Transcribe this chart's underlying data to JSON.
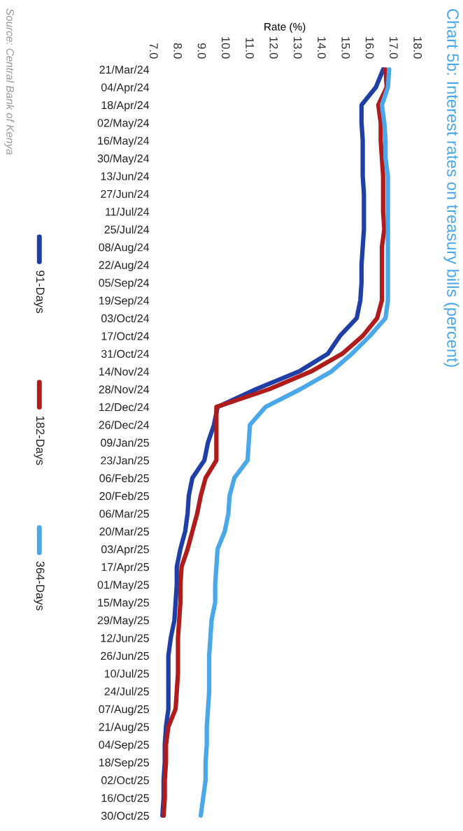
{
  "chart_data": {
    "type": "line",
    "orientation": "horizontal",
    "title": "Chart 5b: Interest rates on treasury bills (percent)",
    "xlabel": "Rate (%)",
    "annotations": [
      "Source: Central Bank of Kenya"
    ],
    "categories": [
      "21/Mar/24",
      "04/Apr/24",
      "18/Apr/24",
      "02/May/24",
      "16/May/24",
      "30/May/24",
      "13/Jun/24",
      "27/Jun/24",
      "11/Jul/24",
      "25/Jul/24",
      "08/Aug/24",
      "22/Aug/24",
      "05/Sep/24",
      "19/Sep/24",
      "03/Oct/24",
      "17/Oct/24",
      "31/Oct/24",
      "14/Nov/24",
      "28/Nov/24",
      "12/Dec/24",
      "26/Dec/24",
      "09/Jan/25",
      "23/Jan/25",
      "06/Feb/25",
      "20/Feb/25",
      "06/Mar/25",
      "20/Mar/25",
      "03/Apr/25",
      "17/Apr/25",
      "01/May/25",
      "15/May/25",
      "29/May/25",
      "12/Jun/25",
      "26/Jun/25",
      "10/Jul/25",
      "24/Jul/25",
      "07/Aug/25",
      "21/Aug/25",
      "04/Sep/25",
      "18/Sep/25",
      "02/Oct/25",
      "16/Oct/25",
      "30/Oct/25"
    ],
    "series": [
      {
        "name": "91-Days",
        "color": "#1f3fa6",
        "values": [
          16.6,
          16.3,
          15.7,
          15.7,
          15.75,
          15.75,
          15.75,
          15.8,
          15.8,
          15.8,
          15.75,
          15.7,
          15.7,
          15.65,
          15.5,
          14.8,
          14.3,
          13.1,
          11.3,
          9.7,
          9.55,
          9.3,
          9.15,
          8.65,
          8.5,
          8.45,
          8.35,
          8.15,
          8.0,
          8.0,
          7.95,
          7.9,
          7.75,
          7.65,
          7.65,
          7.65,
          7.65,
          7.55,
          7.5,
          7.5,
          7.45,
          7.45,
          7.4
        ]
      },
      {
        "name": "182-Days",
        "color": "#b01c1c",
        "values": [
          16.7,
          16.75,
          16.4,
          16.5,
          16.5,
          16.55,
          16.6,
          16.6,
          16.6,
          16.65,
          16.55,
          16.55,
          16.55,
          16.55,
          16.35,
          15.75,
          14.9,
          13.6,
          11.85,
          9.65,
          9.65,
          9.65,
          9.65,
          9.2,
          9.0,
          8.85,
          8.65,
          8.45,
          8.2,
          8.15,
          8.15,
          8.1,
          8.05,
          8.05,
          8.05,
          8.0,
          7.95,
          7.65,
          7.55,
          7.55,
          7.5,
          7.5,
          7.45
        ]
      },
      {
        "name": "364-Days",
        "color": "#4aa8e8",
        "values": [
          16.85,
          16.8,
          16.55,
          16.65,
          16.7,
          16.7,
          16.8,
          16.8,
          16.8,
          16.8,
          16.8,
          16.8,
          16.8,
          16.8,
          16.7,
          16.05,
          15.3,
          14.45,
          13.15,
          11.7,
          11.05,
          11.0,
          10.95,
          10.4,
          10.2,
          10.15,
          10.0,
          9.7,
          9.65,
          9.6,
          9.6,
          9.45,
          9.4,
          9.35,
          9.35,
          9.35,
          9.3,
          9.25,
          9.25,
          9.2,
          9.2,
          9.1,
          9.0
        ]
      }
    ],
    "xlim": [
      7,
      18
    ],
    "xticks": [
      {
        "value": 7,
        "label": "7.0"
      },
      {
        "value": 8,
        "label": "8.0"
      },
      {
        "value": 9,
        "label": "9.0"
      },
      {
        "value": 10,
        "label": "10.0"
      },
      {
        "value": 11,
        "label": "11.0"
      },
      {
        "value": 12,
        "label": "12.0"
      },
      {
        "value": 13,
        "label": "13.0"
      },
      {
        "value": 14,
        "label": "14.0"
      },
      {
        "value": 15,
        "label": "15.0"
      },
      {
        "value": 16,
        "label": "16.0"
      },
      {
        "value": 17,
        "label": "17.0"
      },
      {
        "value": 18,
        "label": "18.0"
      }
    ],
    "legend": "left"
  }
}
